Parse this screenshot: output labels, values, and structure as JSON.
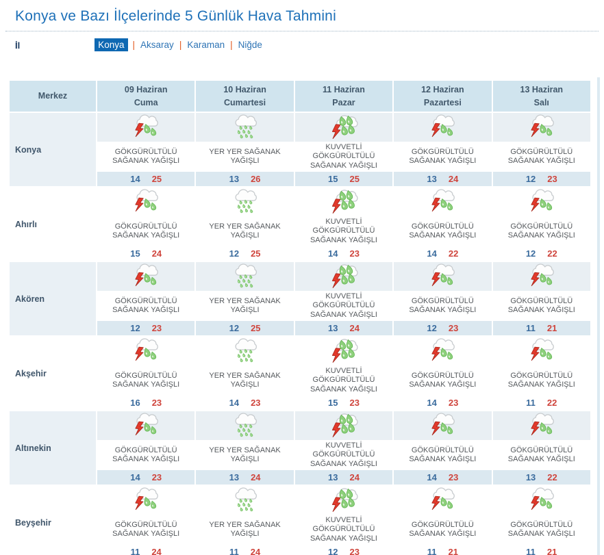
{
  "page": {
    "title": "Konya ve Bazı İlçelerinde 5 Günlük Hava Tahmini",
    "province_label": "İl",
    "tab_separator": "|",
    "tabs": [
      {
        "label": "Konya",
        "selected": true
      },
      {
        "label": "Aksaray",
        "selected": false
      },
      {
        "label": "Karaman",
        "selected": false
      },
      {
        "label": "Niğde",
        "selected": false
      }
    ]
  },
  "colors": {
    "title_blue": "#1d70b8",
    "tab_selected_bg": "#0e68b2",
    "tab_link": "#2e74b5",
    "tab_separator_orange": "#e2571c",
    "header_bg": "#d0e4ee",
    "row_tint": "#e9f0f5",
    "temp_strip_tint": "#dbe8f0",
    "temp_min_blue": "#3a6b9d",
    "temp_max_red": "#cf443c"
  },
  "table": {
    "merkez_header": "Merkez",
    "day_headers": [
      {
        "date": "09 Haziran",
        "day": "Cuma"
      },
      {
        "date": "10 Haziran",
        "day": "Cumartesi"
      },
      {
        "date": "11 Haziran",
        "day": "Pazar"
      },
      {
        "date": "12 Haziran",
        "day": "Pazartesi"
      },
      {
        "date": "13 Haziran",
        "day": "Salı"
      }
    ],
    "rows": [
      {
        "name": "Konya",
        "cells": [
          {
            "icon": "thunderstorm-icon",
            "desc": "GÖKGÜRÜLTÜLÜ SAĞANAK YAĞIŞLI",
            "min": 14,
            "max": 25
          },
          {
            "icon": "rain-icon",
            "desc": "YER YER SAĞANAK YAĞIŞLI",
            "min": 13,
            "max": 26
          },
          {
            "icon": "heavy-thunderstorm-icon",
            "desc": "KUVVETLİ GÖKGÜRÜLTÜLÜ SAĞANAK YAĞIŞLI",
            "min": 15,
            "max": 25
          },
          {
            "icon": "thunderstorm-icon",
            "desc": "GÖKGÜRÜLTÜLÜ SAĞANAK YAĞIŞLI",
            "min": 13,
            "max": 24
          },
          {
            "icon": "thunderstorm-icon",
            "desc": "GÖKGÜRÜLTÜLÜ SAĞANAK YAĞIŞLI",
            "min": 12,
            "max": 23
          }
        ]
      },
      {
        "name": "Ahırlı",
        "cells": [
          {
            "icon": "thunderstorm-icon",
            "desc": "GÖKGÜRÜLTÜLÜ SAĞANAK YAĞIŞLI",
            "min": 15,
            "max": 24
          },
          {
            "icon": "rain-icon",
            "desc": "YER YER SAĞANAK YAĞIŞLI",
            "min": 12,
            "max": 25
          },
          {
            "icon": "heavy-thunderstorm-icon",
            "desc": "KUVVETLİ GÖKGÜRÜLTÜLÜ SAĞANAK YAĞIŞLI",
            "min": 14,
            "max": 23
          },
          {
            "icon": "thunderstorm-icon",
            "desc": "GÖKGÜRÜLTÜLÜ SAĞANAK YAĞIŞLI",
            "min": 14,
            "max": 22
          },
          {
            "icon": "thunderstorm-icon",
            "desc": "GÖKGÜRÜLTÜLÜ SAĞANAK YAĞIŞLI",
            "min": 12,
            "max": 22
          }
        ]
      },
      {
        "name": "Akören",
        "cells": [
          {
            "icon": "thunderstorm-icon",
            "desc": "GÖKGÜRÜLTÜLÜ SAĞANAK YAĞIŞLI",
            "min": 12,
            "max": 23
          },
          {
            "icon": "rain-icon",
            "desc": "YER YER SAĞANAK YAĞIŞLI",
            "min": 12,
            "max": 25
          },
          {
            "icon": "heavy-thunderstorm-icon",
            "desc": "KUVVETLİ GÖKGÜRÜLTÜLÜ SAĞANAK YAĞIŞLI",
            "min": 13,
            "max": 24
          },
          {
            "icon": "thunderstorm-icon",
            "desc": "GÖKGÜRÜLTÜLÜ SAĞANAK YAĞIŞLI",
            "min": 12,
            "max": 23
          },
          {
            "icon": "thunderstorm-icon",
            "desc": "GÖKGÜRÜLTÜLÜ SAĞANAK YAĞIŞLI",
            "min": 11,
            "max": 21
          }
        ]
      },
      {
        "name": "Akşehir",
        "cells": [
          {
            "icon": "thunderstorm-icon",
            "desc": "GÖKGÜRÜLTÜLÜ SAĞANAK YAĞIŞLI",
            "min": 16,
            "max": 23
          },
          {
            "icon": "rain-icon",
            "desc": "YER YER SAĞANAK YAĞIŞLI",
            "min": 14,
            "max": 23
          },
          {
            "icon": "heavy-thunderstorm-icon",
            "desc": "KUVVETLİ GÖKGÜRÜLTÜLÜ SAĞANAK YAĞIŞLI",
            "min": 15,
            "max": 23
          },
          {
            "icon": "thunderstorm-icon",
            "desc": "GÖKGÜRÜLTÜLÜ SAĞANAK YAĞIŞLI",
            "min": 14,
            "max": 23
          },
          {
            "icon": "thunderstorm-icon",
            "desc": "GÖKGÜRÜLTÜLÜ SAĞANAK YAĞIŞLI",
            "min": 11,
            "max": 22
          }
        ]
      },
      {
        "name": "Altınekin",
        "cells": [
          {
            "icon": "thunderstorm-icon",
            "desc": "GÖKGÜRÜLTÜLÜ SAĞANAK YAĞIŞLI",
            "min": 14,
            "max": 23
          },
          {
            "icon": "rain-icon",
            "desc": "YER YER SAĞANAK YAĞIŞLI",
            "min": 13,
            "max": 24
          },
          {
            "icon": "heavy-thunderstorm-icon",
            "desc": "KUVVETLİ GÖKGÜRÜLTÜLÜ SAĞANAK YAĞIŞLI",
            "min": 13,
            "max": 24
          },
          {
            "icon": "thunderstorm-icon",
            "desc": "GÖKGÜRÜLTÜLÜ SAĞANAK YAĞIŞLI",
            "min": 14,
            "max": 23
          },
          {
            "icon": "thunderstorm-icon",
            "desc": "GÖKGÜRÜLTÜLÜ SAĞANAK YAĞIŞLI",
            "min": 13,
            "max": 22
          }
        ]
      },
      {
        "name": "Beyşehir",
        "cells": [
          {
            "icon": "thunderstorm-icon",
            "desc": "GÖKGÜRÜLTÜLÜ SAĞANAK YAĞIŞLI",
            "min": 11,
            "max": 24
          },
          {
            "icon": "rain-icon",
            "desc": "YER YER SAĞANAK YAĞIŞLI",
            "min": 11,
            "max": 24
          },
          {
            "icon": "heavy-thunderstorm-icon",
            "desc": "KUVVETLİ GÖKGÜRÜLTÜLÜ SAĞANAK YAĞIŞLI",
            "min": 12,
            "max": 23
          },
          {
            "icon": "thunderstorm-icon",
            "desc": "GÖKGÜRÜLTÜLÜ SAĞANAK YAĞIŞLI",
            "min": 11,
            "max": 21
          },
          {
            "icon": "thunderstorm-icon",
            "desc": "GÖKGÜRÜLTÜLÜ SAĞANAK YAĞIŞLI",
            "min": 11,
            "max": 21
          }
        ]
      }
    ]
  }
}
